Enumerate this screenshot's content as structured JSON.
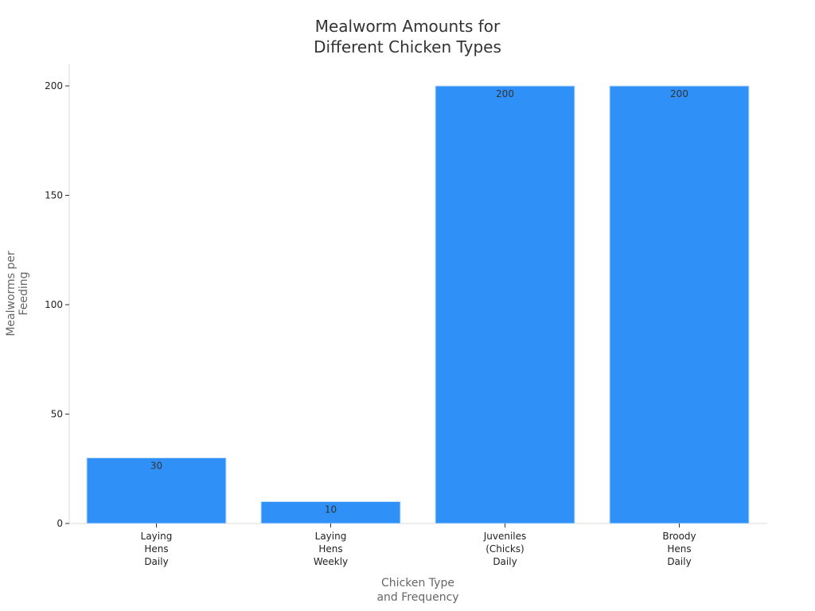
{
  "chart_data": {
    "type": "bar",
    "title": [
      "Mealworm Amounts for",
      "Different Chicken Types"
    ],
    "xlabel": [
      "Chicken Type",
      "and Frequency"
    ],
    "ylabel": [
      "Mealworms per",
      "Feeding"
    ],
    "categories": [
      [
        "Laying",
        "Hens",
        "Daily"
      ],
      [
        "Laying",
        "Hens",
        "Weekly"
      ],
      [
        "Juveniles",
        "(Chicks)",
        "Daily"
      ],
      [
        "Broody",
        "Hens",
        "Daily"
      ]
    ],
    "values": [
      30,
      10,
      200,
      200
    ],
    "data_labels": [
      "30",
      "10",
      "200",
      "200"
    ],
    "ylim": [
      0,
      210
    ],
    "yticks": [
      0,
      50,
      100,
      150,
      200
    ],
    "ytick_labels": [
      "0",
      "50",
      "100",
      "150",
      "200"
    ],
    "grid": false,
    "legend": "none",
    "colors": {
      "bar": "#2f91f7",
      "bar_edge": "#c9e0fb"
    }
  }
}
